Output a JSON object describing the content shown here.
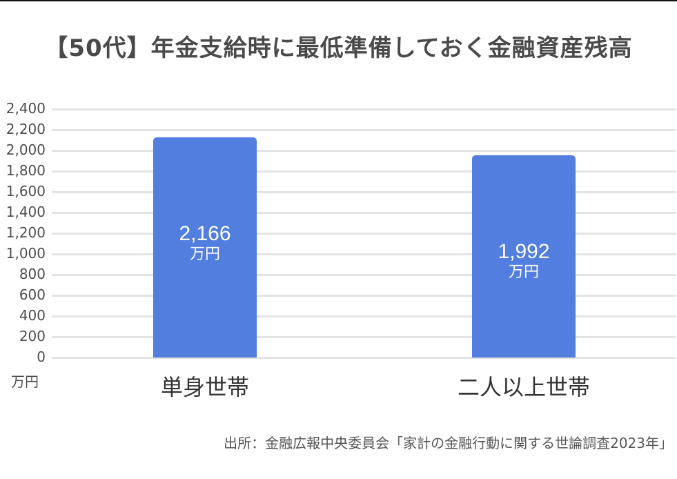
{
  "title": "【50代】年金支給時に最低準備しておく金融資産残高",
  "source": "出所：金融広報中央委員会「家計の金融行動に関する世論調査2023年」",
  "y_unit": "万円",
  "colors": {
    "bar": "#527ee0",
    "grid": "#e3e3e3",
    "text": "#444444"
  },
  "chart_data": {
    "type": "bar",
    "title": "【50代】年金支給時に最低準備しておく金融資産残高",
    "categories": [
      "単身世帯",
      "二人以上世帯"
    ],
    "values": [
      2166,
      1992
    ],
    "value_labels": [
      "2,166",
      "1,992"
    ],
    "value_unit": "万円",
    "xlabel": "",
    "ylabel": "万円",
    "ylim": [
      0,
      2400
    ],
    "yticks": [
      "0",
      "200",
      "400",
      "600",
      "800",
      "1,000",
      "1,200",
      "1,400",
      "1,600",
      "1,800",
      "2,000",
      "2,200",
      "2,400"
    ],
    "grid": true,
    "legend": "none"
  }
}
